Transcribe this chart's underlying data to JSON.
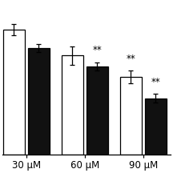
{
  "groups": [
    "30 μM",
    "60 μM",
    "90 μM"
  ],
  "white_values": [
    0.82,
    0.65,
    0.51
  ],
  "black_values": [
    0.7,
    0.58,
    0.37
  ],
  "white_errors": [
    0.038,
    0.058,
    0.042
  ],
  "black_errors": [
    0.028,
    0.025,
    0.028
  ],
  "bar_width": 0.32,
  "group_centers": [
    0,
    0.85,
    1.7
  ],
  "ylim": [
    0,
    1.0
  ],
  "xlim": [
    -0.35,
    2.1
  ],
  "background_color": "#ffffff",
  "white_bar_color": "#ffffff",
  "black_bar_color": "#111111",
  "edge_color": "#000000",
  "annotation_fontsize": 8.5,
  "tick_fontsize": 8.5,
  "annot_60_black": "**",
  "annot_90_white": "**",
  "annot_90_black": "**"
}
